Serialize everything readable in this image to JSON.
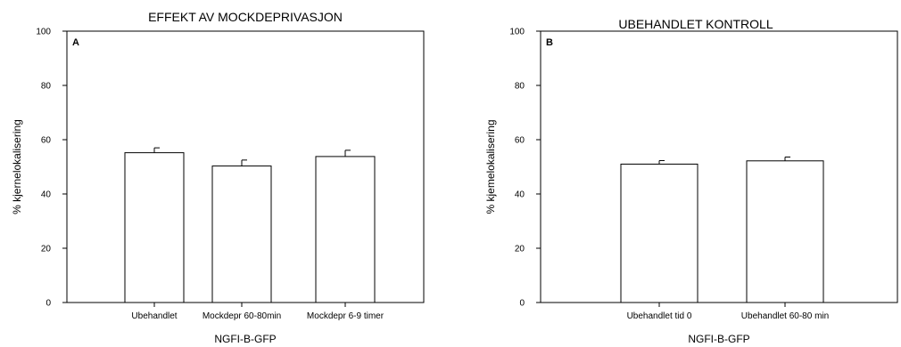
{
  "chart_data": [
    {
      "type": "bar",
      "panel_label": "A",
      "title": "EFFEKT AV MOCKDEPRIVASJON",
      "xlabel": "NGFI-B-GFP",
      "ylabel": "% kjernelokalisering",
      "ylim": [
        0,
        100
      ],
      "yticks": [
        0,
        20,
        40,
        60,
        80,
        100
      ],
      "categories": [
        "Ubehandlet",
        "Mockdepr 60-80min",
        "Mockdepr 6-9 timer"
      ],
      "values": [
        55.2,
        50.3,
        53.8
      ],
      "errors": [
        1.8,
        2.2,
        2.3
      ],
      "grid": false,
      "bar_color": "#ffffff",
      "edge_color": "#000000"
    },
    {
      "type": "bar",
      "panel_label": "B",
      "title": "UBEHANDLET KONTROLL",
      "xlabel": "NGFI-B-GFP",
      "ylabel": "% kjemelokalisering",
      "ylim": [
        0,
        100
      ],
      "yticks": [
        0,
        20,
        40,
        60,
        80,
        100
      ],
      "categories": [
        "Ubehandlet tid 0",
        "Ubehandlet 60-80 min"
      ],
      "values": [
        51.0,
        52.2
      ],
      "errors": [
        1.3,
        1.4
      ],
      "grid": false,
      "bar_color": "#ffffff",
      "edge_color": "#000000"
    }
  ]
}
